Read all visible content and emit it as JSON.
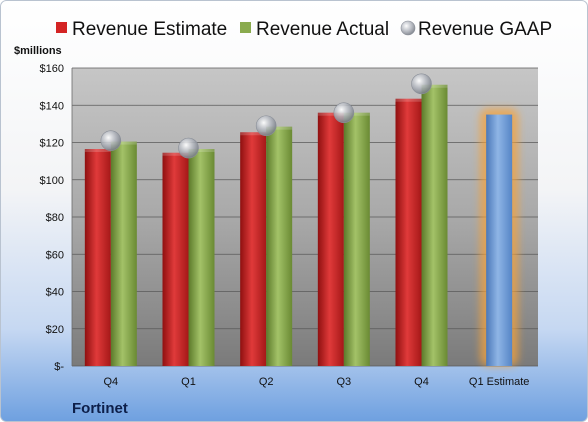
{
  "colors": {
    "estimate": "#d42424",
    "actual": "#8aab4e",
    "gaap": "#b4b8c0",
    "forecast": "#6f9bd4",
    "glow": "#f5a13b"
  },
  "company": "Fortinet",
  "chart_data": {
    "type": "bar",
    "ylabel": "$millions",
    "ylim": [
      0,
      160
    ],
    "yticks": [
      0,
      20,
      40,
      60,
      80,
      100,
      120,
      140,
      160
    ],
    "ytick_labels": [
      "$-",
      "$20",
      "$40",
      "$60",
      "$80",
      "$100",
      "$120",
      "$140",
      "$160"
    ],
    "categories": [
      "Q4",
      "Q1",
      "Q2",
      "Q3",
      "Q4",
      "Q1 Estimate"
    ],
    "legend_position": "top",
    "grid": true,
    "series": [
      {
        "name": "Revenue Estimate",
        "key": "estimate",
        "kind": "bar",
        "values": [
          116.5,
          114.5,
          125.5,
          136,
          143.5,
          null
        ]
      },
      {
        "name": "Revenue Actual",
        "key": "actual",
        "kind": "bar",
        "values": [
          120.5,
          116.5,
          128.5,
          136,
          151,
          null
        ]
      },
      {
        "name": "Revenue GAAP",
        "key": "gaap",
        "kind": "marker",
        "values": [
          121,
          117,
          129,
          136,
          151.5,
          null
        ]
      }
    ],
    "forecast": {
      "category": "Q1 Estimate",
      "value": 135
    }
  }
}
